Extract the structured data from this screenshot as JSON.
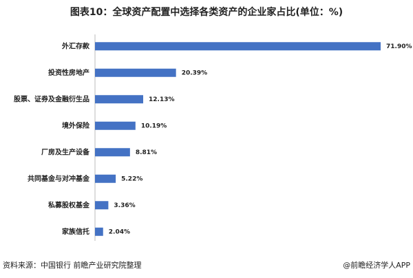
{
  "chart_data": {
    "type": "bar",
    "orientation": "horizontal",
    "title": "图表10：全球资产配置中选择各类资产的企业家占比(单位：%)",
    "categories": [
      "外汇存款",
      "投资性房地产",
      "股票、证券及金融衍生品",
      "境外保险",
      "厂房及生产设备",
      "共同基金与对冲基金",
      "私募股权基金",
      "家族信托"
    ],
    "values": [
      71.9,
      20.39,
      12.13,
      10.19,
      8.81,
      5.22,
      3.36,
      2.04
    ],
    "value_labels": [
      "71.90%",
      "20.39%",
      "12.13%",
      "10.19%",
      "8.81%",
      "5.22%",
      "3.36%",
      "2.04%"
    ],
    "color": "#4472c4"
  },
  "footer": {
    "source": "资料来源：中国银行 前瞻产业研究院整理",
    "brand": "@前瞻经济学人APP"
  }
}
